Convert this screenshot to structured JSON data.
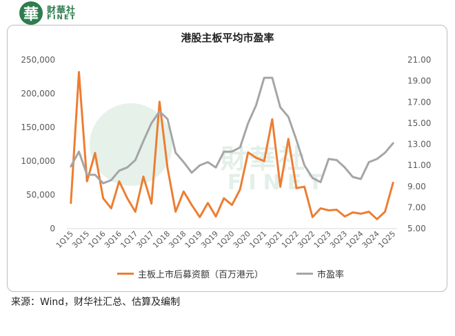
{
  "logo": {
    "badge": "華",
    "name_cn": "财華社",
    "name_en": "FINET"
  },
  "watermark": {
    "text_cn": "財華社",
    "text_en": "FINET"
  },
  "source": "来源：Wind，财华社汇总、估算及编制",
  "colors": {
    "orange": "#ed7d31",
    "gray": "#a5a5a5"
  },
  "chart_data": {
    "type": "line",
    "title": "港股主板平均市盈率",
    "categories": [
      "1Q15",
      "2Q15",
      "3Q15",
      "4Q15",
      "1Q16",
      "2Q16",
      "3Q16",
      "4Q16",
      "1Q17",
      "2Q17",
      "3Q17",
      "4Q17",
      "1Q18",
      "2Q18",
      "3Q18",
      "4Q18",
      "1Q19",
      "2Q19",
      "3Q19",
      "4Q19",
      "1Q20",
      "2Q20",
      "3Q20",
      "4Q20",
      "1Q21",
      "2Q21",
      "3Q21",
      "4Q21",
      "1Q22",
      "2Q22",
      "3Q22",
      "4Q22",
      "1Q23",
      "2Q23",
      "3Q23",
      "4Q23",
      "1Q24",
      "2Q24",
      "3Q24",
      "4Q24",
      "1Q25"
    ],
    "x_tick_labels": [
      "1Q15",
      "3Q15",
      "1Q16",
      "3Q16",
      "1Q17",
      "3Q17",
      "1Q18",
      "3Q18",
      "1Q19",
      "3Q19",
      "1Q20",
      "3Q20",
      "1Q21",
      "3Q21",
      "1Q22",
      "3Q22",
      "1Q23",
      "3Q23",
      "1Q24",
      "3Q24",
      "1Q25"
    ],
    "left_axis": {
      "min": 0,
      "max": 250000,
      "ticks": [
        "0",
        "50,000",
        "100,000",
        "150,000",
        "200,000",
        "250,000"
      ]
    },
    "right_axis": {
      "min": 5,
      "max": 21,
      "ticks": [
        "5.00",
        "7.00",
        "9.00",
        "11.00",
        "13.00",
        "15.00",
        "17.00",
        "19.00",
        "21.00"
      ]
    },
    "series": [
      {
        "name": "主板上市后募资额（百万港元）",
        "axis": "left",
        "color": "#ed7d31",
        "values": [
          38000,
          232000,
          70000,
          112000,
          45000,
          30000,
          70000,
          45000,
          25000,
          77000,
          37000,
          188000,
          90000,
          25000,
          55000,
          35000,
          17000,
          38000,
          18000,
          45000,
          35000,
          58000,
          113000,
          105000,
          100000,
          162000,
          62000,
          133000,
          60000,
          62000,
          17000,
          30000,
          27000,
          28000,
          18000,
          24000,
          22000,
          25000,
          14000,
          25000,
          68000
        ]
      },
      {
        "name": "市盈率",
        "axis": "right",
        "color": "#a5a5a5",
        "values": [
          10.9,
          12.3,
          10.1,
          10.1,
          9.3,
          9.6,
          10.5,
          10.8,
          11.5,
          13.3,
          15.0,
          16.1,
          15.4,
          12.2,
          11.3,
          10.3,
          11.0,
          11.3,
          10.8,
          12.3,
          12.3,
          12.7,
          15.0,
          16.7,
          19.3,
          19.3,
          16.5,
          15.6,
          13.4,
          11.0,
          9.8,
          9.4,
          11.6,
          11.5,
          10.8,
          9.9,
          9.7,
          11.3,
          11.6,
          12.2,
          13.1
        ]
      }
    ]
  }
}
